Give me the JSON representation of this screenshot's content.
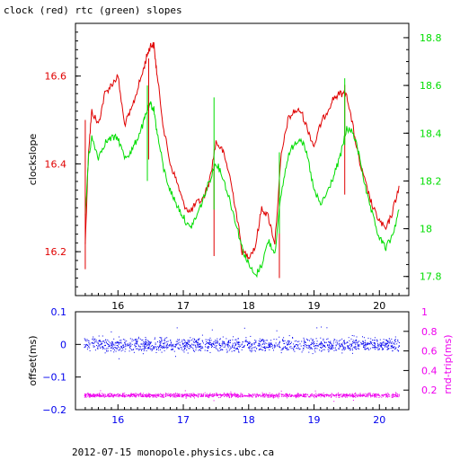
{
  "title": "clock (red) rtc (green) slopes",
  "footer": "2012-07-15 monopole.physics.ubc.ca",
  "colors": {
    "clock": "#e00000",
    "rtc": "#00dd00",
    "offset": "#0000ee",
    "roundtrip": "#ee00ee",
    "axis": "#000000"
  },
  "chart_data": [
    {
      "type": "line",
      "ylabel": "clockslope",
      "xlim": [
        15.35,
        20.45
      ],
      "ylim": [
        16.1,
        16.72
      ],
      "ylim_right": [
        17.72,
        18.86
      ],
      "xticks": [
        16,
        17,
        18,
        19,
        20
      ],
      "yticks": [
        16.2,
        16.4,
        16.6
      ],
      "yticks_right": [
        17.8,
        18,
        18.2,
        18.4,
        18.6,
        18.8
      ],
      "series": [
        {
          "name": "clock (red)",
          "axis": "left",
          "x": [
            15.5,
            15.55,
            15.6,
            15.7,
            15.8,
            15.9,
            16.0,
            16.1,
            16.2,
            16.3,
            16.4,
            16.45,
            16.5,
            16.55,
            16.6,
            16.7,
            16.8,
            16.9,
            17.0,
            17.1,
            17.2,
            17.3,
            17.4,
            17.5,
            17.6,
            17.7,
            17.8,
            17.9,
            18.0,
            18.1,
            18.2,
            18.3,
            18.4,
            18.5,
            18.6,
            18.7,
            18.8,
            18.9,
            19.0,
            19.1,
            19.2,
            19.3,
            19.4,
            19.5,
            19.6,
            19.7,
            19.8,
            19.9,
            20.0,
            20.1,
            20.2,
            20.3
          ],
          "y": [
            16.22,
            16.43,
            16.52,
            16.49,
            16.56,
            16.58,
            16.6,
            16.49,
            16.52,
            16.57,
            16.62,
            16.65,
            16.67,
            16.67,
            16.6,
            16.48,
            16.4,
            16.36,
            16.31,
            16.29,
            16.31,
            16.32,
            16.36,
            16.45,
            16.43,
            16.38,
            16.3,
            16.2,
            16.19,
            16.21,
            16.3,
            16.28,
            16.22,
            16.42,
            16.5,
            16.52,
            16.52,
            16.48,
            16.44,
            16.49,
            16.52,
            16.55,
            16.56,
            16.56,
            16.48,
            16.4,
            16.35,
            16.3,
            16.27,
            16.25,
            16.29,
            16.35
          ]
        },
        {
          "name": "rtc (green)",
          "axis": "right",
          "x": [
            15.5,
            15.55,
            15.6,
            15.7,
            15.8,
            15.9,
            16.0,
            16.1,
            16.2,
            16.3,
            16.4,
            16.45,
            16.5,
            16.55,
            16.6,
            16.7,
            16.8,
            16.9,
            17.0,
            17.1,
            17.2,
            17.3,
            17.4,
            17.5,
            17.6,
            17.7,
            17.8,
            17.9,
            18.0,
            18.1,
            18.2,
            18.3,
            18.4,
            18.5,
            18.6,
            18.7,
            18.8,
            18.9,
            19.0,
            19.1,
            19.2,
            19.3,
            19.4,
            19.5,
            19.6,
            19.7,
            19.8,
            19.9,
            20.0,
            20.1,
            20.2,
            20.3
          ],
          "y": [
            18.05,
            18.3,
            18.38,
            18.3,
            18.36,
            18.38,
            18.38,
            18.3,
            18.32,
            18.38,
            18.45,
            18.5,
            18.52,
            18.5,
            18.4,
            18.25,
            18.16,
            18.1,
            18.05,
            18.0,
            18.05,
            18.12,
            18.2,
            18.28,
            18.22,
            18.13,
            18.03,
            17.92,
            17.85,
            17.8,
            17.85,
            17.95,
            17.9,
            18.15,
            18.3,
            18.36,
            18.38,
            18.3,
            18.16,
            18.1,
            18.15,
            18.22,
            18.3,
            18.42,
            18.4,
            18.3,
            18.15,
            18.05,
            17.96,
            17.92,
            17.97,
            18.08
          ]
        }
      ],
      "spikes": [
        {
          "color": "clock",
          "x": 15.5,
          "y_from": 16.16,
          "y_to": 16.5
        },
        {
          "color": "clock",
          "x": 16.47,
          "y_from": 16.41,
          "y_to": 16.64
        },
        {
          "color": "rtc",
          "x": 16.45,
          "y_from": 18.2,
          "y_to": 18.6
        },
        {
          "color": "clock",
          "x": 17.47,
          "y_from": 16.19,
          "y_to": 16.4
        },
        {
          "color": "rtc",
          "x": 17.47,
          "y_from": 18.08,
          "y_to": 18.55
        },
        {
          "color": "clock",
          "x": 18.47,
          "y_from": 16.14,
          "y_to": 16.42
        },
        {
          "color": "rtc",
          "x": 18.47,
          "y_from": 17.98,
          "y_to": 18.32
        },
        {
          "color": "clock",
          "x": 19.47,
          "y_from": 16.33,
          "y_to": 16.58
        },
        {
          "color": "rtc",
          "x": 19.47,
          "y_from": 18.35,
          "y_to": 18.63
        }
      ]
    },
    {
      "type": "scatter",
      "ylabel": "offset(ms)",
      "ylabel_right": "rnd-trip(ms)",
      "xlim": [
        15.35,
        20.45
      ],
      "ylim": [
        -0.2,
        0.1
      ],
      "ylim_right": [
        0.0,
        1.0
      ],
      "xticks": [
        16,
        17,
        18,
        19,
        20
      ],
      "yticks": [
        -0.2,
        -0.1,
        0,
        0.1
      ],
      "ytick_labels": [
        "−0.2",
        "−0.1",
        "0",
        "0.1"
      ],
      "yticks_right": [
        0.2,
        0.4,
        0.6,
        0.8,
        1
      ],
      "series": [
        {
          "name": "offset",
          "axis": "left",
          "x_range": [
            15.48,
            20.3
          ],
          "center": 0.0,
          "spread": 0.02
        },
        {
          "name": "round-trip",
          "axis": "right",
          "x_range": [
            15.48,
            20.3
          ],
          "center": 0.15,
          "spread": 0.02
        }
      ]
    }
  ]
}
